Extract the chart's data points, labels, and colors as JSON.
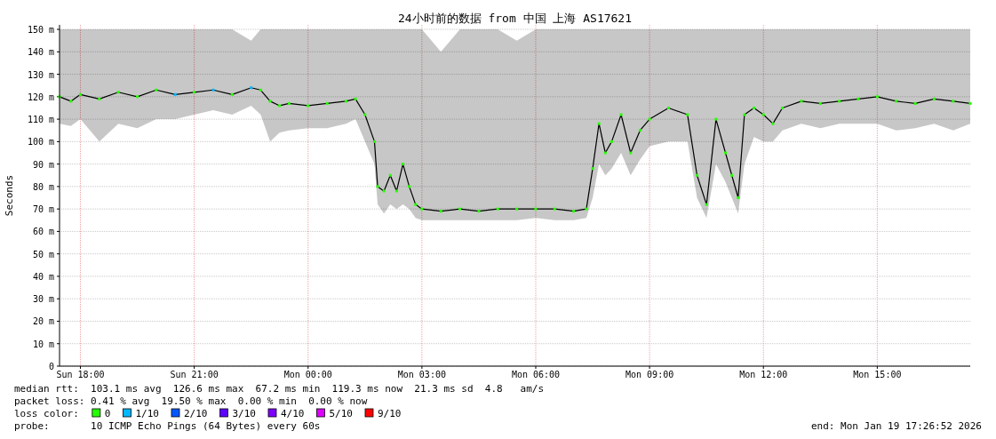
{
  "chart_data": {
    "type": "line",
    "title": "24小时前的数据 from 中国 上海 AS17621",
    "ylabel": "Seconds",
    "legend_title": "loss color:",
    "legend": "bottom",
    "grid": true,
    "marker": "square",
    "xlim": [
      "2026-01-18T17:27",
      "2026-01-19T17:27"
    ],
    "xticks": [
      {
        "value": "2026-01-18T18:00",
        "label": "Sun 18:00"
      },
      {
        "value": "2026-01-18T21:00",
        "label": "Sun 21:00"
      },
      {
        "value": "2026-01-19T00:00",
        "label": "Mon 00:00"
      },
      {
        "value": "2026-01-19T03:00",
        "label": "Mon 03:00"
      },
      {
        "value": "2026-01-19T06:00",
        "label": "Mon 06:00"
      },
      {
        "value": "2026-01-19T09:00",
        "label": "Mon 09:00"
      },
      {
        "value": "2026-01-19T12:00",
        "label": "Mon 12:00"
      },
      {
        "value": "2026-01-19T15:00",
        "label": "Mon 15:00"
      }
    ],
    "ylim": [
      0,
      152
    ],
    "yticks": [
      0,
      {
        "value": 10,
        "label": "10 m"
      },
      {
        "value": 20,
        "label": "20 m"
      },
      {
        "value": 30,
        "label": "30 m"
      },
      {
        "value": 40,
        "label": "40 m"
      },
      {
        "value": 50,
        "label": "50 m"
      },
      {
        "value": 60,
        "label": "60 m"
      },
      {
        "value": 70,
        "label": "70 m"
      },
      {
        "value": 80,
        "label": "80 m"
      },
      {
        "value": 90,
        "label": "90 m"
      },
      {
        "value": 100,
        "label": "100 m"
      },
      {
        "value": 110,
        "label": "110 m"
      },
      {
        "value": 120,
        "label": "120 m"
      },
      {
        "value": 130,
        "label": "130 m"
      },
      {
        "value": 140,
        "label": "140 m"
      },
      {
        "value": 150,
        "label": "150 m"
      }
    ],
    "x": [
      "2026-01-18T17:27",
      "2026-01-18T17:45",
      "2026-01-18T18:00",
      "2026-01-18T18:30",
      "2026-01-18T19:00",
      "2026-01-18T19:30",
      "2026-01-18T20:00",
      "2026-01-18T20:30",
      "2026-01-18T21:00",
      "2026-01-18T21:30",
      "2026-01-18T22:00",
      "2026-01-18T22:30",
      "2026-01-18T22:45",
      "2026-01-18T23:00",
      "2026-01-18T23:15",
      "2026-01-18T23:30",
      "2026-01-19T00:00",
      "2026-01-19T00:30",
      "2026-01-19T01:00",
      "2026-01-19T01:15",
      "2026-01-19T01:30",
      "2026-01-19T01:45",
      "2026-01-19T01:50",
      "2026-01-19T02:00",
      "2026-01-19T02:10",
      "2026-01-19T02:20",
      "2026-01-19T02:30",
      "2026-01-19T02:40",
      "2026-01-19T02:50",
      "2026-01-19T03:00",
      "2026-01-19T03:30",
      "2026-01-19T04:00",
      "2026-01-19T04:30",
      "2026-01-19T05:00",
      "2026-01-19T05:30",
      "2026-01-19T06:00",
      "2026-01-19T06:30",
      "2026-01-19T07:00",
      "2026-01-19T07:20",
      "2026-01-19T07:30",
      "2026-01-19T07:40",
      "2026-01-19T07:50",
      "2026-01-19T08:00",
      "2026-01-19T08:15",
      "2026-01-19T08:30",
      "2026-01-19T08:45",
      "2026-01-19T09:00",
      "2026-01-19T09:30",
      "2026-01-19T10:00",
      "2026-01-19T10:15",
      "2026-01-19T10:30",
      "2026-01-19T10:45",
      "2026-01-19T11:00",
      "2026-01-19T11:10",
      "2026-01-19T11:20",
      "2026-01-19T11:30",
      "2026-01-19T11:45",
      "2026-01-19T12:00",
      "2026-01-19T12:15",
      "2026-01-19T12:30",
      "2026-01-19T13:00",
      "2026-01-19T13:30",
      "2026-01-19T14:00",
      "2026-01-19T14:30",
      "2026-01-19T15:00",
      "2026-01-19T15:30",
      "2026-01-19T16:00",
      "2026-01-19T16:30",
      "2026-01-19T17:00",
      "2026-01-19T17:27"
    ],
    "series": [
      {
        "marker": "none",
        "color": "#000000",
        "values": [
          120,
          118,
          121,
          119,
          122,
          120,
          123,
          121,
          122,
          123,
          121,
          124,
          123,
          118,
          116,
          117,
          116,
          117,
          118,
          119,
          112,
          100,
          80,
          78,
          85,
          78,
          90,
          80,
          72,
          70,
          69,
          70,
          69,
          70,
          70,
          70,
          70,
          69,
          70,
          88,
          108,
          95,
          100,
          112,
          95,
          105,
          110,
          115,
          112,
          85,
          72,
          110,
          95,
          85,
          75,
          112,
          115,
          112,
          108,
          115,
          118,
          117,
          118,
          119,
          120,
          118,
          117,
          119,
          118,
          117
        ],
        "lower": [
          108,
          107,
          110,
          100,
          108,
          106,
          110,
          110,
          112,
          114,
          112,
          116,
          112,
          100,
          104,
          105,
          106,
          106,
          108,
          110,
          100,
          90,
          72,
          68,
          72,
          70,
          72,
          70,
          66,
          65,
          65,
          65,
          65,
          65,
          65,
          66,
          65,
          65,
          66,
          75,
          90,
          85,
          88,
          95,
          85,
          92,
          98,
          100,
          100,
          75,
          66,
          90,
          82,
          75,
          68,
          90,
          102,
          100,
          100,
          105,
          108,
          106,
          108,
          108,
          108,
          105,
          106,
          108,
          105,
          108
        ],
        "upper": [
          150,
          150,
          150,
          150,
          150,
          150,
          150,
          150,
          150,
          150,
          150,
          145,
          150,
          150,
          150,
          150,
          150,
          150,
          150,
          150,
          150,
          150,
          150,
          150,
          150,
          150,
          150,
          150,
          150,
          150,
          140,
          150,
          150,
          150,
          145,
          150,
          150,
          150,
          150,
          150,
          150,
          150,
          150,
          150,
          150,
          150,
          150,
          150,
          150,
          150,
          150,
          150,
          150,
          150,
          150,
          150,
          150,
          150,
          150,
          150,
          150,
          150,
          150,
          150,
          150,
          150,
          150,
          150,
          150,
          150
        ]
      },
      {
        "type": "scatter",
        "name": "0",
        "color": "#26ff00",
        "values": [
          120,
          118,
          121,
          119,
          122,
          120,
          123,
          null,
          122,
          null,
          121,
          null,
          123,
          118,
          116,
          117,
          116,
          117,
          118,
          119,
          112,
          100,
          80,
          78,
          85,
          78,
          90,
          80,
          72,
          70,
          69,
          70,
          69,
          70,
          70,
          70,
          70,
          69,
          70,
          88,
          108,
          95,
          100,
          112,
          95,
          105,
          110,
          115,
          112,
          85,
          72,
          110,
          95,
          85,
          75,
          112,
          115,
          112,
          108,
          115,
          118,
          117,
          118,
          119,
          120,
          118,
          117,
          119,
          118,
          117
        ]
      },
      {
        "type": "scatter",
        "name": "1/10",
        "color": "#00b8ff",
        "values": [
          null,
          null,
          null,
          null,
          null,
          null,
          null,
          121,
          null,
          123,
          null,
          124,
          null,
          null,
          null,
          null,
          null,
          null,
          null,
          null,
          null,
          null,
          null,
          null,
          null,
          null,
          null,
          null,
          null,
          null,
          null,
          null,
          null,
          null,
          null,
          null,
          null,
          null,
          null,
          null,
          null,
          null,
          null,
          null,
          null,
          null,
          null,
          null,
          null,
          null,
          null,
          null,
          null,
          null,
          null,
          null,
          null,
          null,
          null,
          null,
          null,
          null,
          null,
          null,
          null,
          null,
          null,
          null,
          null,
          null
        ]
      },
      {
        "type": "scatter",
        "name": "2/10",
        "color": "#0059ff",
        "values": [
          null,
          null,
          null,
          null,
          null,
          null,
          null,
          null,
          null,
          null,
          null,
          null,
          null,
          null,
          null,
          null,
          null,
          null,
          null,
          null,
          null,
          null,
          null,
          null,
          null,
          null,
          null,
          null,
          null,
          null,
          null,
          null,
          null,
          null,
          null,
          null,
          null,
          null,
          null,
          null,
          null,
          null,
          null,
          null,
          null,
          null,
          null,
          null,
          null,
          null,
          null,
          null,
          null,
          null,
          null,
          null,
          null,
          null,
          null,
          null,
          null,
          null,
          null,
          null,
          null,
          null,
          null,
          null,
          null,
          null
        ]
      },
      {
        "type": "scatter",
        "name": "3/10",
        "color": "#5e00ff",
        "values": [
          null,
          null,
          null,
          null,
          null,
          null,
          null,
          null,
          null,
          null,
          null,
          null,
          null,
          null,
          null,
          null,
          null,
          null,
          null,
          null,
          null,
          null,
          null,
          null,
          null,
          null,
          null,
          null,
          null,
          null,
          null,
          null,
          null,
          null,
          null,
          null,
          null,
          null,
          null,
          null,
          null,
          null,
          null,
          null,
          null,
          null,
          null,
          null,
          null,
          null,
          null,
          null,
          null,
          null,
          null,
          null,
          null,
          null,
          null,
          null,
          null,
          null,
          null,
          null,
          null,
          null,
          null,
          null,
          null,
          null
        ]
      },
      {
        "type": "scatter",
        "name": "4/10",
        "color": "#7e00ff",
        "values": [
          null,
          null,
          null,
          null,
          null,
          null,
          null,
          null,
          null,
          null,
          null,
          null,
          null,
          null,
          null,
          null,
          null,
          null,
          null,
          null,
          null,
          null,
          null,
          null,
          null,
          null,
          null,
          null,
          null,
          null,
          null,
          null,
          null,
          null,
          null,
          null,
          null,
          null,
          null,
          null,
          null,
          null,
          null,
          null,
          null,
          null,
          null,
          null,
          null,
          null,
          null,
          null,
          null,
          null,
          null,
          null,
          null,
          null,
          null,
          null,
          null,
          null,
          null,
          null,
          null,
          null,
          null,
          null,
          null,
          null
        ]
      },
      {
        "type": "scatter",
        "name": "5/10",
        "color": "#dd00ff",
        "values": [
          null,
          null,
          null,
          null,
          null,
          null,
          null,
          null,
          null,
          null,
          null,
          null,
          null,
          null,
          null,
          null,
          null,
          null,
          null,
          null,
          null,
          null,
          null,
          null,
          null,
          null,
          null,
          null,
          null,
          null,
          null,
          null,
          null,
          null,
          null,
          null,
          null,
          null,
          null,
          null,
          null,
          null,
          null,
          null,
          null,
          null,
          null,
          null,
          null,
          null,
          null,
          null,
          null,
          null,
          null,
          null,
          null,
          null,
          null,
          null,
          null,
          null,
          null,
          null,
          null,
          null,
          null,
          null,
          null,
          null
        ]
      },
      {
        "type": "scatter",
        "name": "9/10",
        "color": "#ff0000",
        "values": [
          null,
          null,
          null,
          null,
          null,
          null,
          null,
          null,
          null,
          null,
          null,
          null,
          null,
          null,
          null,
          null,
          null,
          null,
          null,
          null,
          null,
          null,
          null,
          null,
          null,
          null,
          null,
          null,
          null,
          null,
          null,
          null,
          null,
          null,
          null,
          null,
          null,
          null,
          null,
          null,
          null,
          null,
          null,
          null,
          null,
          null,
          null,
          null,
          null,
          null,
          null,
          null,
          null,
          null,
          null,
          null,
          null,
          null,
          null,
          null,
          null,
          null,
          null,
          null,
          null,
          null,
          null,
          null,
          null,
          null
        ]
      }
    ],
    "annotations": [
      "median rtt:  103.1 ms avg  126.6 ms max  67.2 ms min  119.3 ms now  21.3 ms sd  4.8   am/s",
      "packet loss: 0.41 % avg  19.50 % max  0.00 % min  0.00 % now",
      "probe:       10 ICMP Echo Pings (64 Bytes) every 60s",
      "end: Mon Jan 19 17:26:52 2026"
    ]
  }
}
